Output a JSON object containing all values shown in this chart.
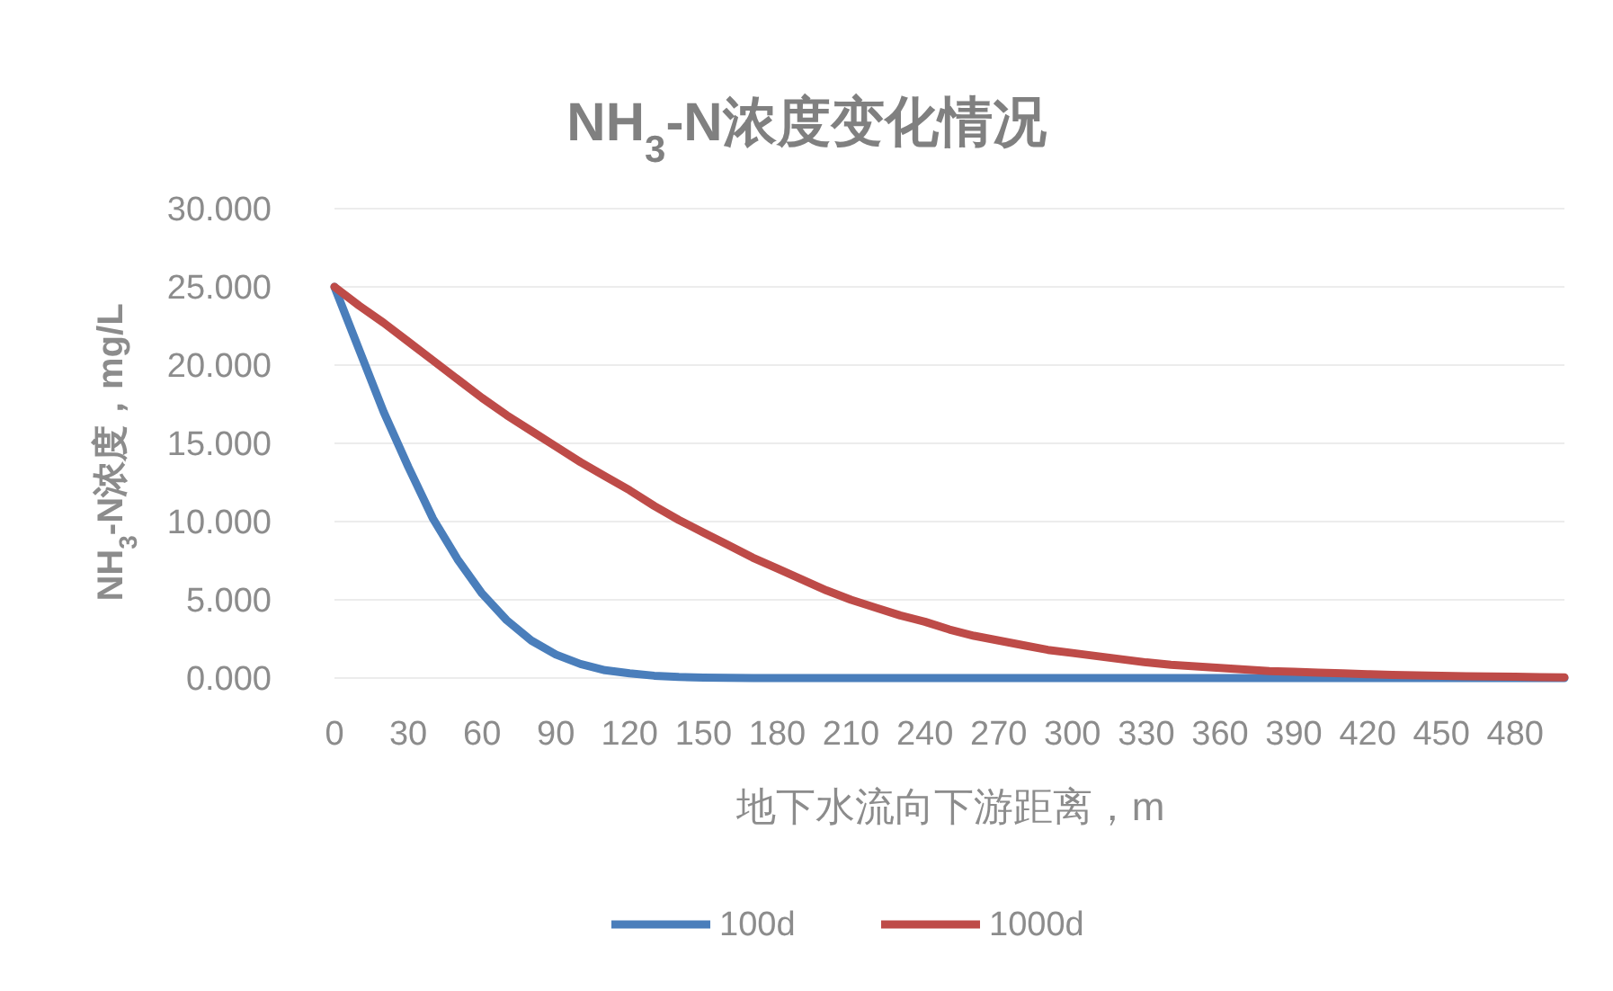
{
  "chart_data": {
    "type": "line",
    "title": "NH$_{3}$-N浓度变化情况",
    "xlabel": "地下水流向下游距离，m",
    "ylabel": "NH$_{3}$-N浓度，mg/L",
    "x": [
      0,
      10,
      20,
      30,
      40,
      50,
      60,
      70,
      80,
      90,
      100,
      110,
      120,
      130,
      140,
      150,
      160,
      170,
      180,
      190,
      200,
      210,
      220,
      230,
      240,
      250,
      260,
      270,
      280,
      290,
      300,
      310,
      320,
      330,
      340,
      350,
      360,
      370,
      380,
      390,
      400,
      410,
      420,
      430,
      440,
      450,
      460,
      470,
      480,
      490,
      500
    ],
    "series": [
      {
        "name": "100d",
        "color": "#4a7ebb",
        "values": [
          25,
          21,
          17,
          13.5,
          10.2,
          7.6,
          5.4,
          3.7,
          2.4,
          1.5,
          0.9,
          0.5,
          0.3,
          0.15,
          0.07,
          0.03,
          0.01,
          0,
          0,
          0,
          0,
          0,
          0,
          0,
          0,
          0,
          0,
          0,
          0,
          0,
          0,
          0,
          0,
          0,
          0,
          0,
          0,
          0,
          0,
          0,
          0,
          0,
          0,
          0,
          0,
          0,
          0,
          0,
          0,
          0,
          0
        ]
      },
      {
        "name": "1000d",
        "color": "#be4b48",
        "values": [
          25,
          23.8,
          22.7,
          21.5,
          20.3,
          19.1,
          17.9,
          16.8,
          15.8,
          14.8,
          13.8,
          12.9,
          12,
          11,
          10.1,
          9.3,
          8.5,
          7.7,
          7,
          6.3,
          5.6,
          5,
          4.5,
          4,
          3.6,
          3.1,
          2.7,
          2.4,
          2.1,
          1.8,
          1.6,
          1.4,
          1.2,
          1,
          0.85,
          0.75,
          0.65,
          0.55,
          0.45,
          0.4,
          0.35,
          0.3,
          0.25,
          0.2,
          0.17,
          0.15,
          0.12,
          0.1,
          0.08,
          0.06,
          0.05
        ]
      }
    ],
    "xlim": [
      0,
      500
    ],
    "xticks": [
      0,
      30,
      60,
      90,
      120,
      150,
      180,
      210,
      240,
      270,
      300,
      330,
      360,
      390,
      420,
      450,
      480
    ],
    "ylim": [
      0,
      30
    ],
    "yticks": [
      {
        "value": 0,
        "label": "0.000"
      },
      {
        "value": 5,
        "label": "5.000"
      },
      {
        "value": 10,
        "label": "10.000"
      },
      {
        "value": 15,
        "label": "15.000"
      },
      {
        "value": 20,
        "label": "20.000"
      },
      {
        "value": 25,
        "label": "25.000"
      },
      {
        "value": 30,
        "label": "30.000"
      }
    ],
    "grid": "y",
    "legend": "bottom",
    "marker": "none",
    "line_style": "solid"
  }
}
